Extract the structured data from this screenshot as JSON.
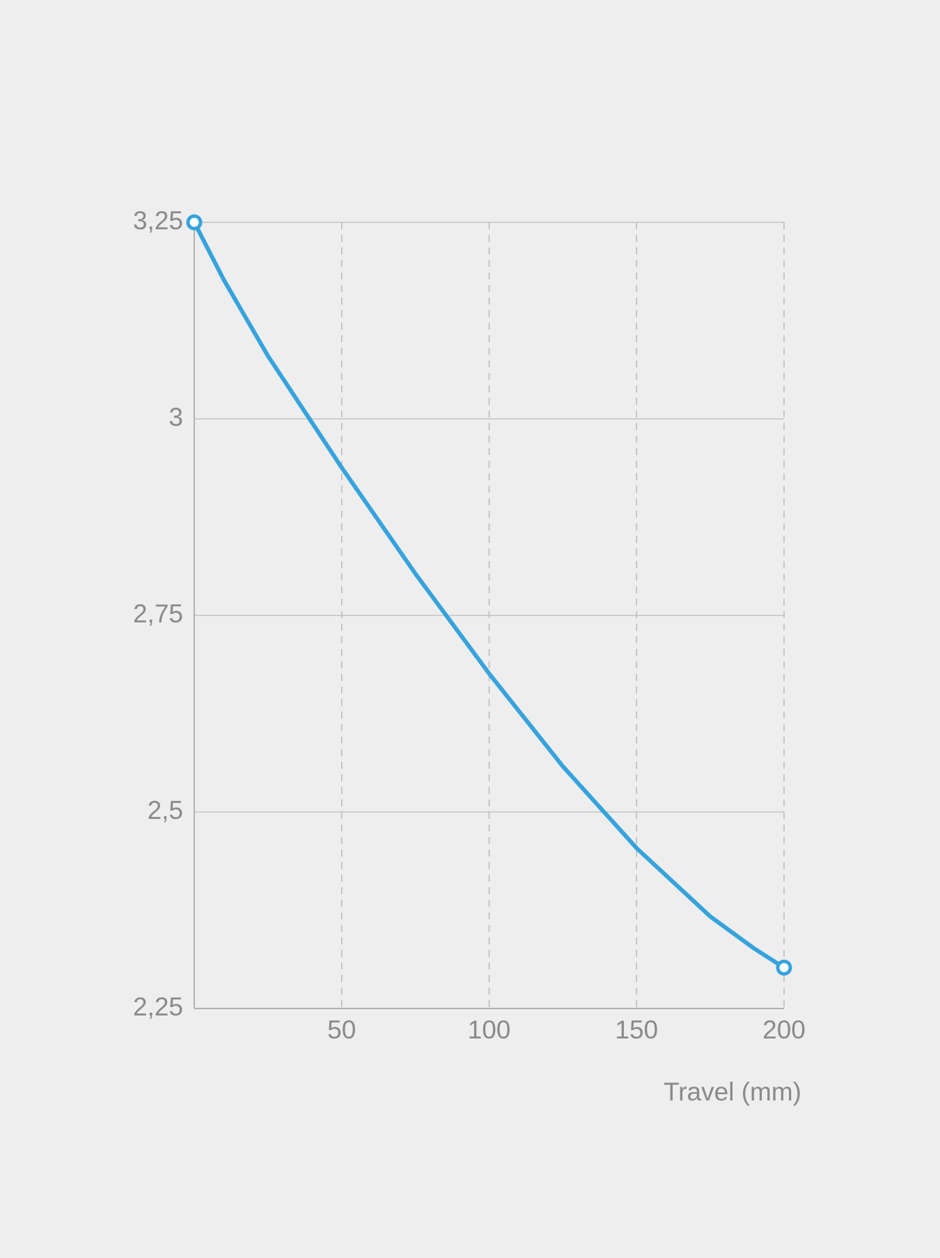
{
  "chart_data": {
    "type": "line",
    "x_label": "Travel (mm)",
    "x": [
      0,
      10,
      25,
      50,
      75,
      100,
      125,
      150,
      175,
      190,
      200
    ],
    "series": [
      {
        "color": "#36a3dc",
        "values": [
          3.25,
          3.177,
          3.08,
          2.938,
          2.803,
          2.676,
          2.558,
          2.454,
          2.367,
          2.326,
          2.302
        ]
      }
    ],
    "xlim": [
      0,
      200
    ],
    "xticks": [
      50,
      100,
      150,
      200
    ],
    "ylim": [
      2.25,
      3.25
    ],
    "yticks": [
      {
        "value": 2.25,
        "label": "2,25"
      },
      {
        "value": 2.5,
        "label": "2,5"
      },
      {
        "value": 2.75,
        "label": "2,75"
      },
      3,
      {
        "value": 3.25,
        "label": "3,25"
      }
    ],
    "grid": true
  }
}
